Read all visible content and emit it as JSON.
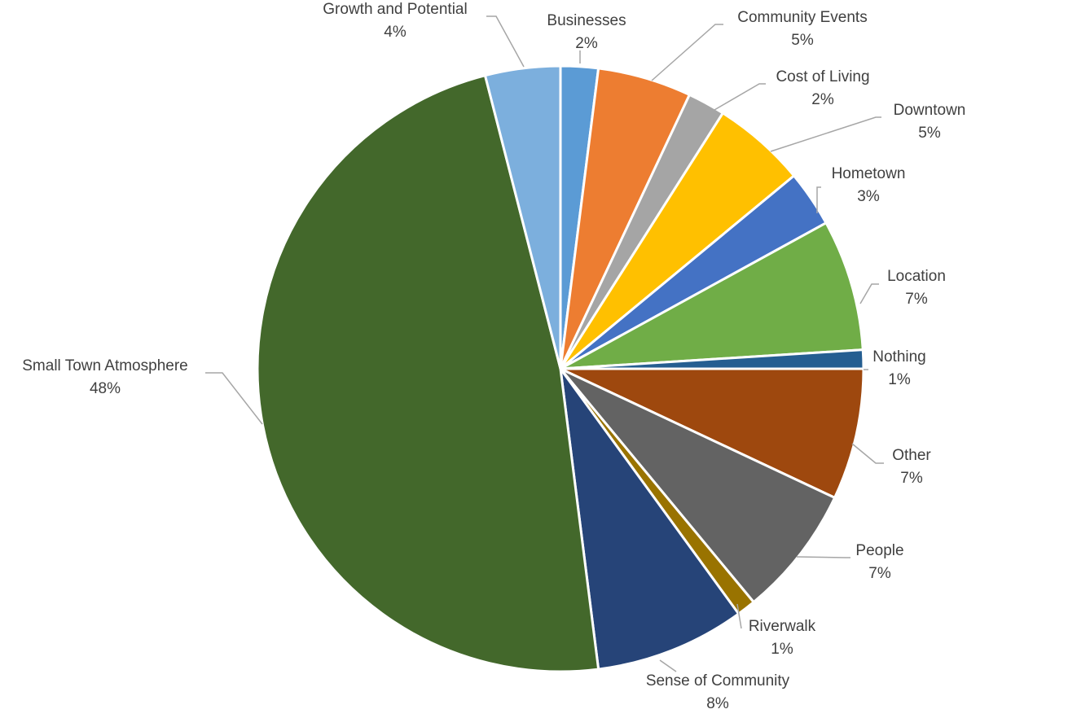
{
  "chart_data": {
    "type": "pie",
    "title": "",
    "legend": "none",
    "slices": [
      {
        "name": "Businesses",
        "value": 2,
        "label": "2%",
        "color": "#5B9BD5"
      },
      {
        "name": "Community Events",
        "value": 5,
        "label": "5%",
        "color": "#ED7D31"
      },
      {
        "name": "Cost of Living",
        "value": 2,
        "label": "2%",
        "color": "#A5A5A5"
      },
      {
        "name": "Downtown",
        "value": 5,
        "label": "5%",
        "color": "#FFC000"
      },
      {
        "name": "Hometown",
        "value": 3,
        "label": "3%",
        "color": "#4472C4"
      },
      {
        "name": "Location",
        "value": 7,
        "label": "7%",
        "color": "#70AD47"
      },
      {
        "name": "Nothing",
        "value": 1,
        "label": "1%",
        "color": "#255E91"
      },
      {
        "name": "Other",
        "value": 7,
        "label": "7%",
        "color": "#9E480E"
      },
      {
        "name": "People",
        "value": 7,
        "label": "7%",
        "color": "#636363"
      },
      {
        "name": "Riverwalk",
        "value": 1,
        "label": "1%",
        "color": "#997300"
      },
      {
        "name": "Sense of Community",
        "value": 8,
        "label": "8%",
        "color": "#264478"
      },
      {
        "name": "Small Town Atmosphere",
        "value": 48,
        "label": "48%",
        "color": "#43682B"
      },
      {
        "name": "Growth and Potential",
        "value": 4,
        "label": "4%",
        "color": "#7CAFDD"
      }
    ]
  }
}
